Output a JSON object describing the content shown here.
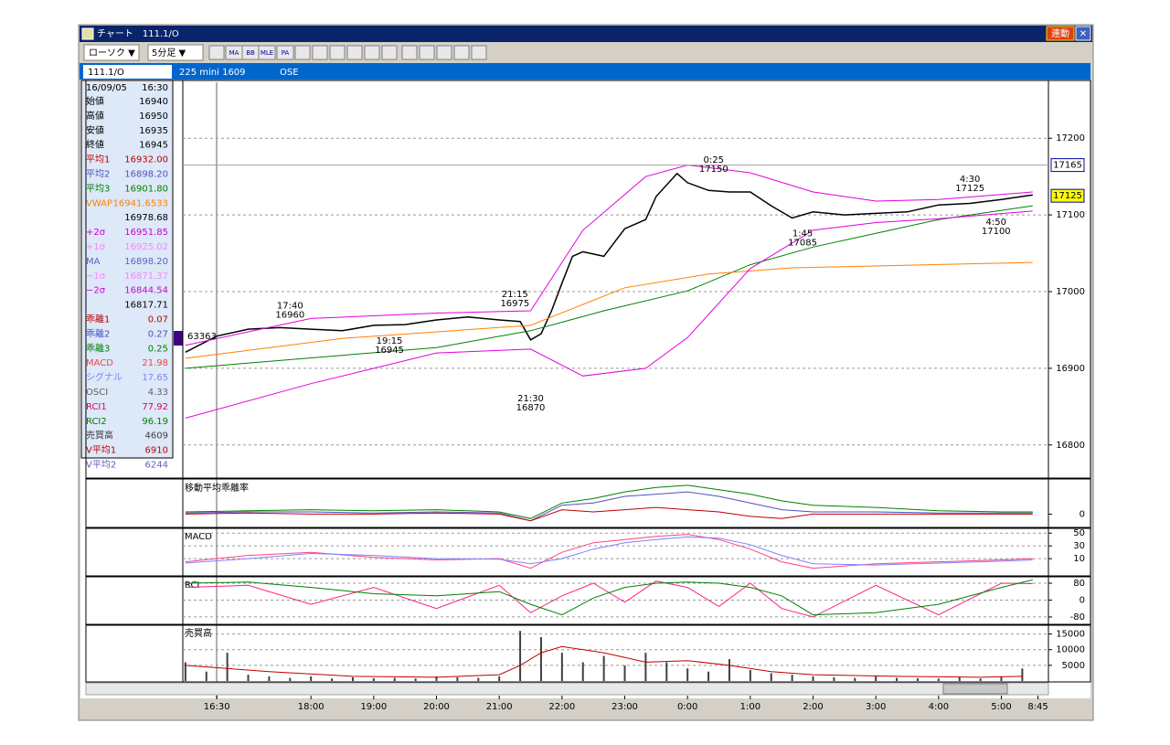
{
  "window": {
    "title": "チャート　111.1/O",
    "link_button": "連動"
  },
  "toolbar": {
    "chart_type": "ローソク ▼",
    "interval": "5分足 ▼",
    "icons": [
      "MA",
      "BB",
      "MLE",
      "PA"
    ]
  },
  "info_bar": {
    "code": "111.1/O",
    "contract": "225 mini 1609",
    "exchange": "OSE"
  },
  "panel": {
    "date": "16/09/05",
    "time": "16:30",
    "rows": [
      {
        "label": "始値",
        "value": "16940",
        "color": "#000000"
      },
      {
        "label": "高値",
        "value": "16950",
        "color": "#000000"
      },
      {
        "label": "安値",
        "value": "16935",
        "color": "#000000"
      },
      {
        "label": "終値",
        "value": "16945",
        "color": "#000000"
      },
      {
        "label": "平均1",
        "value": "16932.00",
        "color": "#c00000"
      },
      {
        "label": "平均2",
        "value": "16898.20",
        "color": "#5050c0"
      },
      {
        "label": "平均3",
        "value": "16901.80",
        "color": "#008000"
      },
      {
        "label": "VWAP",
        "value": "16941.6533",
        "color": "#ff8000"
      },
      {
        "value": "16978.68",
        "color": "#000000"
      },
      {
        "label": "+2σ",
        "value": "16951.85",
        "color": "#d000d0"
      },
      {
        "label": "+1σ",
        "value": "16925.02",
        "color": "#ff80ff"
      },
      {
        "label": "MA",
        "value": "16898.20",
        "color": "#6060c0"
      },
      {
        "label": "−1σ",
        "value": "16871.37",
        "color": "#ff80ff"
      },
      {
        "label": "−2σ",
        "value": "16844.54",
        "color": "#d000d0"
      },
      {
        "value": "16817.71",
        "color": "#000000"
      },
      {
        "label": "乖離1",
        "value": "0.07",
        "color": "#c00000"
      },
      {
        "label": "乖離2",
        "value": "0.27",
        "color": "#5050c0"
      },
      {
        "label": "乖離3",
        "value": "0.25",
        "color": "#008000"
      },
      {
        "label": "MACD",
        "value": "21.98",
        "color": "#ff4040"
      },
      {
        "label": "シグナル",
        "value": "17.65",
        "color": "#8080ff"
      },
      {
        "label": "OSCI",
        "value": "4.33",
        "color": "#606060"
      },
      {
        "label": "RCI1",
        "value": "77.92",
        "color": "#e00060"
      },
      {
        "label": "RCI2",
        "value": "96.19",
        "color": "#008000"
      },
      {
        "label": "売買高",
        "value": "4609",
        "color": "#404040"
      },
      {
        "label": "V平均1",
        "value": "6910",
        "color": "#c00000"
      },
      {
        "label": "V平均2",
        "value": "6244",
        "color": "#6060c0"
      }
    ]
  },
  "chart_data": [
    {
      "type": "line",
      "xlim": [
        -0.5,
        165
      ],
      "ylim": [
        16758,
        17273
      ],
      "yticks": [
        16800,
        16900,
        17000,
        17100,
        17200
      ],
      "grid": true,
      "xticks": [
        {
          "value": 6,
          "label": "16:30"
        },
        {
          "value": 24,
          "label": "18:00"
        },
        {
          "value": 36,
          "label": "19:00"
        },
        {
          "value": 48,
          "label": "20:00"
        },
        {
          "value": 60,
          "label": "21:00"
        },
        {
          "value": 72,
          "label": "22:00"
        },
        {
          "value": 84,
          "label": "23:00"
        },
        {
          "value": 96,
          "label": "0:00"
        },
        {
          "value": 108,
          "label": "1:00"
        },
        {
          "value": 120,
          "label": "2:00"
        },
        {
          "value": 132,
          "label": "3:00"
        },
        {
          "value": 144,
          "label": "4:00"
        },
        {
          "value": 156,
          "label": "5:00"
        },
        {
          "value": 163,
          "label": "8:45"
        }
      ],
      "x": [
        0,
        6,
        12,
        18,
        24,
        30,
        36,
        42,
        48,
        54,
        60,
        64,
        66,
        68,
        70,
        72,
        74,
        76,
        80,
        84,
        88,
        90,
        94,
        96,
        100,
        104,
        108,
        112,
        116,
        120,
        126,
        132,
        138,
        144,
        150,
        156,
        162
      ],
      "series": [
        {
          "color": "#000000",
          "values": [
            16921,
            16942,
            16951,
            16953,
            16951,
            16949,
            16956,
            16957,
            16963,
            16967,
            16963,
            16961,
            16937,
            16945,
            16975,
            17011,
            17046,
            17052,
            17046,
            17082,
            17094,
            17124,
            17154,
            17142,
            17132,
            17130,
            17130,
            17112,
            17096,
            17104,
            17100,
            17102,
            17104,
            17113,
            17115,
            17120,
            17126
          ]
        },
        {
          "color": "#008000",
          "x": [
            0,
            48,
            66,
            80,
            96,
            108,
            120,
            132,
            144,
            162
          ],
          "values": [
            16900,
            16927,
            16949,
            16975,
            17001,
            17035,
            17058,
            17076,
            17094,
            17112
          ]
        },
        {
          "color": "#ff8000",
          "x": [
            0,
            30,
            66,
            84,
            100,
            116,
            162
          ],
          "values": [
            16913,
            16939,
            16956,
            17005,
            17023,
            17031,
            17038
          ]
        },
        {
          "color": "#e000e0",
          "x": [
            0,
            24,
            48,
            66,
            76,
            88,
            96,
            108,
            120,
            132,
            144,
            162
          ],
          "values": [
            16930,
            16965,
            16972,
            16975,
            17080,
            17150,
            17165,
            17155,
            17130,
            17118,
            17120,
            17130
          ]
        },
        {
          "color": "#e000e0",
          "x": [
            0,
            24,
            48,
            66,
            76,
            88,
            96,
            108,
            120,
            132,
            144,
            162
          ],
          "values": [
            16835,
            16880,
            16920,
            16925,
            16890,
            16900,
            16940,
            17030,
            17080,
            17090,
            17095,
            17105
          ]
        }
      ],
      "annotations": [
        {
          "x": 20,
          "label": "17:40",
          "value": 16960
        },
        {
          "x": 39,
          "label": "19:15",
          "value": 16945
        },
        {
          "x": 63,
          "label": "21:15",
          "value": 16975
        },
        {
          "x": 66,
          "label": "21:30",
          "value": 16870
        },
        {
          "x": 101,
          "label": "0:25",
          "value": 17150
        },
        {
          "x": 118,
          "label": "1:45",
          "value": 17085
        },
        {
          "x": 150,
          "label": "4:30",
          "value": 17125
        },
        {
          "x": 155,
          "label": "4:50",
          "value": 17100
        }
      ],
      "price_markers": [
        {
          "value": 17165,
          "color": "#ffffff"
        },
        {
          "value": 17125,
          "color": "#ffff00"
        }
      ],
      "marker_label": "63363"
    },
    {
      "type": "line",
      "title": "移動平均乖離率",
      "ylim": [
        -0.6,
        1.5
      ],
      "yticks": [
        0
      ],
      "grid": false,
      "x": [
        0,
        12,
        24,
        36,
        48,
        60,
        66,
        72,
        78,
        84,
        90,
        96,
        102,
        108,
        114,
        120,
        132,
        144,
        156,
        162
      ],
      "series": [
        {
          "color": "#008000",
          "values": [
            0.1,
            0.15,
            0.2,
            0.15,
            0.2,
            0.1,
            -0.2,
            0.5,
            0.7,
            1.0,
            1.2,
            1.3,
            1.1,
            0.9,
            0.6,
            0.4,
            0.3,
            0.15,
            0.1,
            0.1
          ]
        },
        {
          "color": "#5050c0",
          "values": [
            0.05,
            0.1,
            0.1,
            0.05,
            0.1,
            0.05,
            -0.3,
            0.4,
            0.5,
            0.8,
            0.9,
            1.0,
            0.8,
            0.5,
            0.2,
            0.1,
            0.1,
            0.05,
            0.05,
            0.05
          ]
        },
        {
          "color": "#c00000",
          "values": [
            0,
            0.05,
            0,
            0,
            0.05,
            0,
            -0.3,
            0.2,
            0.1,
            0.2,
            0.3,
            0.2,
            0.1,
            -0.1,
            -0.2,
            0,
            0,
            0,
            0,
            0
          ]
        }
      ]
    },
    {
      "type": "line",
      "title": "MACD",
      "ylim": [
        -17,
        56
      ],
      "yticks": [
        10,
        30,
        50
      ],
      "grid": true,
      "x": [
        0,
        12,
        24,
        36,
        48,
        60,
        66,
        72,
        78,
        84,
        90,
        96,
        102,
        108,
        114,
        120,
        132,
        144,
        156,
        162
      ],
      "series": [
        {
          "color": "#ff4080",
          "values": [
            5,
            15,
            20,
            12,
            8,
            10,
            -5,
            20,
            35,
            40,
            45,
            48,
            40,
            25,
            5,
            -5,
            2,
            5,
            8,
            10
          ]
        },
        {
          "color": "#8080ff",
          "values": [
            3,
            10,
            18,
            15,
            10,
            9,
            2,
            10,
            25,
            35,
            40,
            44,
            42,
            32,
            15,
            2,
            0,
            3,
            6,
            8
          ]
        }
      ]
    },
    {
      "type": "line",
      "title": "RCI",
      "ylim": [
        -115,
        106
      ],
      "yticks": [
        -80,
        0,
        80
      ],
      "grid": true,
      "x": [
        0,
        12,
        24,
        36,
        48,
        60,
        66,
        72,
        78,
        84,
        90,
        96,
        102,
        108,
        114,
        120,
        132,
        144,
        156,
        162
      ],
      "series": [
        {
          "color": "#ff2080",
          "values": [
            60,
            70,
            -20,
            60,
            -40,
            70,
            -60,
            20,
            80,
            -10,
            90,
            60,
            -30,
            80,
            -40,
            -80,
            70,
            -70,
            80,
            78
          ]
        },
        {
          "color": "#008000",
          "values": [
            80,
            85,
            60,
            30,
            20,
            40,
            -20,
            -70,
            10,
            60,
            80,
            85,
            80,
            60,
            20,
            -70,
            -60,
            -20,
            60,
            96
          ]
        }
      ]
    },
    {
      "type": "bar",
      "title": "売買高",
      "ylim": [
        0,
        17500
      ],
      "yticks": [
        5000,
        10000,
        15000
      ],
      "grid": true,
      "color": "#404040",
      "x": [
        0,
        4,
        8,
        12,
        16,
        20,
        24,
        28,
        32,
        36,
        40,
        44,
        48,
        52,
        56,
        60,
        64,
        68,
        72,
        76,
        80,
        84,
        88,
        92,
        96,
        100,
        104,
        108,
        112,
        116,
        120,
        124,
        128,
        132,
        136,
        140,
        144,
        148,
        152,
        156,
        160
      ],
      "values": [
        6000,
        3000,
        9000,
        2000,
        1500,
        1000,
        1500,
        800,
        1200,
        900,
        1000,
        800,
        1500,
        1200,
        1000,
        1500,
        16000,
        14000,
        9000,
        6000,
        8000,
        5000,
        9000,
        6000,
        4000,
        3000,
        7000,
        3500,
        2500,
        2000,
        1500,
        1200,
        1000,
        1500,
        1000,
        900,
        800,
        1200,
        800,
        1500,
        4000
      ],
      "series": [
        {
          "color": "#c00000",
          "x": [
            0,
            16,
            32,
            48,
            60,
            64,
            68,
            72,
            80,
            88,
            96,
            104,
            112,
            120,
            136,
            152,
            160
          ],
          "values": [
            5000,
            3000,
            1500,
            1200,
            2000,
            5000,
            9000,
            11000,
            9000,
            6000,
            6500,
            5000,
            3000,
            2000,
            1500,
            1200,
            1500
          ]
        }
      ]
    }
  ]
}
